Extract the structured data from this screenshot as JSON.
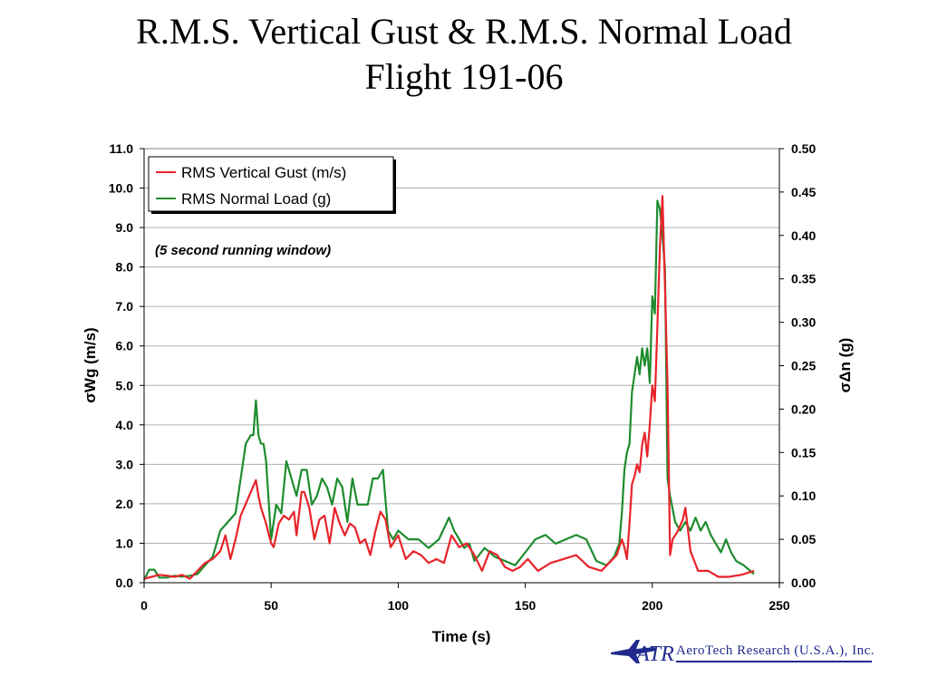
{
  "slide": {
    "title_line1": "R.M.S. Vertical Gust & R.M.S. Normal Load",
    "title_line2": "Flight 191-06"
  },
  "logo": {
    "mark": "ATR",
    "text": "AeroTech Research (U.S.A.), Inc.",
    "color": "#1f2a8c"
  },
  "chart_data": {
    "type": "line",
    "xlabel": "Time (s)",
    "ylabel_left": "σWg (m/s)",
    "ylabel_right": "σΔn (g)",
    "xlim": [
      0,
      250
    ],
    "ylim_left": [
      0,
      11
    ],
    "ylim_right": [
      0,
      0.5
    ],
    "xticks": [
      "0",
      "50",
      "100",
      "150",
      "200",
      "250"
    ],
    "yticks_left": [
      "0.0",
      "1.0",
      "2.0",
      "3.0",
      "4.0",
      "5.0",
      "6.0",
      "7.0",
      "8.0",
      "9.0",
      "10.0",
      "11.0"
    ],
    "yticks_right": [
      "0.00",
      "0.05",
      "0.10",
      "0.15",
      "0.20",
      "0.25",
      "0.30",
      "0.35",
      "0.40",
      "0.45",
      "0.50"
    ],
    "grid": "horizontal",
    "legend_position": "top-left",
    "annotation": "(5 second running window)",
    "series": [
      {
        "name": "RMS Vertical Gust (m/s)",
        "axis": "left",
        "color": "#e8232a",
        "x": [
          0,
          3,
          6,
          9,
          12,
          15,
          18,
          21,
          24,
          27,
          30,
          32,
          34,
          36,
          38,
          40,
          42,
          44,
          45,
          46,
          48,
          50,
          51,
          53,
          55,
          57,
          59,
          60,
          62,
          63,
          65,
          67,
          69,
          71,
          73,
          75,
          77,
          79,
          81,
          83,
          85,
          87,
          89,
          91,
          93,
          95,
          97,
          100,
          103,
          106,
          109,
          112,
          115,
          118,
          121,
          124,
          127,
          130,
          133,
          136,
          139,
          142,
          145,
          148,
          151,
          155,
          160,
          165,
          170,
          175,
          180,
          183,
          186,
          188,
          189,
          190,
          191,
          192,
          193,
          194,
          195,
          196,
          197,
          198,
          199,
          200,
          201,
          202,
          203,
          204,
          205,
          206,
          207,
          208,
          210,
          212,
          213,
          215,
          218,
          222,
          226,
          230,
          235,
          240
        ],
        "y": [
          0.1,
          0.15,
          0.2,
          0.18,
          0.15,
          0.2,
          0.1,
          0.3,
          0.5,
          0.6,
          0.8,
          1.2,
          0.6,
          1.1,
          1.7,
          2.0,
          2.3,
          2.6,
          2.2,
          1.9,
          1.5,
          1.0,
          0.9,
          1.5,
          1.7,
          1.6,
          1.8,
          1.2,
          2.3,
          2.3,
          1.9,
          1.1,
          1.6,
          1.7,
          1.0,
          1.9,
          1.5,
          1.2,
          1.5,
          1.4,
          1.0,
          1.1,
          0.7,
          1.3,
          1.8,
          1.6,
          0.9,
          1.2,
          0.6,
          0.8,
          0.7,
          0.5,
          0.6,
          0.5,
          1.2,
          0.9,
          1.0,
          0.7,
          0.3,
          0.8,
          0.7,
          0.4,
          0.3,
          0.4,
          0.6,
          0.3,
          0.5,
          0.6,
          0.7,
          0.4,
          0.3,
          0.5,
          0.7,
          1.1,
          0.9,
          0.6,
          1.5,
          2.5,
          2.7,
          3.0,
          2.8,
          3.5,
          3.8,
          3.2,
          4.0,
          5.0,
          4.6,
          6.5,
          8.5,
          9.8,
          7.5,
          5.0,
          0.7,
          1.1,
          1.3,
          1.6,
          1.9,
          0.8,
          0.3,
          0.3,
          0.15,
          0.15,
          0.2,
          0.3
        ]
      },
      {
        "name": "RMS Normal Load (g)",
        "axis": "right",
        "color": "#1e8c2e",
        "x": [
          0,
          2,
          4,
          6,
          9,
          12,
          15,
          18,
          21,
          24,
          27,
          30,
          33,
          36,
          38,
          40,
          42,
          43,
          44,
          45,
          46,
          47,
          48,
          50,
          52,
          54,
          56,
          58,
          60,
          62,
          64,
          66,
          68,
          70,
          72,
          74,
          76,
          78,
          80,
          82,
          84,
          86,
          88,
          90,
          92,
          94,
          96,
          98,
          100,
          104,
          108,
          112,
          116,
          120,
          122,
          124,
          126,
          128,
          130,
          134,
          138,
          142,
          146,
          150,
          154,
          158,
          162,
          166,
          170,
          174,
          178,
          182,
          185,
          187,
          188,
          189,
          190,
          191,
          192,
          193,
          194,
          195,
          196,
          197,
          198,
          199,
          200,
          201,
          202,
          203,
          204,
          205,
          206,
          207,
          209,
          211,
          213,
          215,
          217,
          219,
          221,
          223,
          225,
          227,
          229,
          231,
          233,
          236,
          240
        ],
        "y": [
          0.003,
          0.015,
          0.015,
          0.006,
          0.006,
          0.008,
          0.007,
          0.008,
          0.01,
          0.02,
          0.03,
          0.06,
          0.07,
          0.08,
          0.12,
          0.16,
          0.17,
          0.17,
          0.21,
          0.17,
          0.16,
          0.16,
          0.14,
          0.05,
          0.09,
          0.08,
          0.14,
          0.12,
          0.1,
          0.13,
          0.13,
          0.09,
          0.1,
          0.12,
          0.11,
          0.09,
          0.12,
          0.11,
          0.07,
          0.12,
          0.09,
          0.09,
          0.09,
          0.12,
          0.12,
          0.13,
          0.06,
          0.05,
          0.06,
          0.05,
          0.05,
          0.04,
          0.05,
          0.075,
          0.06,
          0.05,
          0.04,
          0.045,
          0.025,
          0.04,
          0.03,
          0.025,
          0.02,
          0.035,
          0.05,
          0.055,
          0.045,
          0.05,
          0.055,
          0.05,
          0.025,
          0.02,
          0.03,
          0.045,
          0.08,
          0.13,
          0.15,
          0.16,
          0.22,
          0.24,
          0.26,
          0.24,
          0.27,
          0.25,
          0.27,
          0.23,
          0.33,
          0.31,
          0.44,
          0.43,
          0.4,
          0.36,
          0.12,
          0.1,
          0.07,
          0.06,
          0.07,
          0.06,
          0.075,
          0.06,
          0.07,
          0.055,
          0.045,
          0.035,
          0.05,
          0.035,
          0.025,
          0.02,
          0.01
        ]
      }
    ]
  }
}
